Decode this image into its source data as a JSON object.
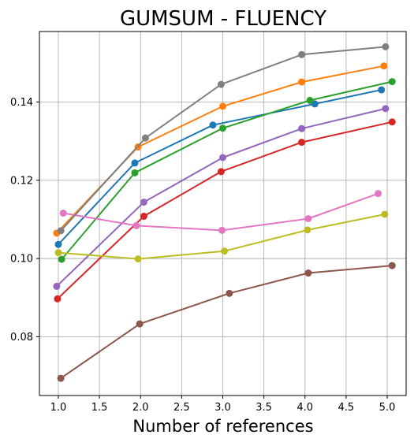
{
  "chart_data": {
    "type": "line",
    "title": "GUMSUM - FLUENCY",
    "xlabel": "Number of references",
    "ylabel": "",
    "xlim": [
      0.77,
      5.23
    ],
    "ylim": [
      0.065,
      0.158
    ],
    "xticks": [
      1.0,
      1.5,
      2.0,
      2.5,
      3.0,
      3.5,
      4.0,
      4.5,
      5.0
    ],
    "xtick_labels": [
      "1.0",
      "1.5",
      "2.0",
      "2.5",
      "3.0",
      "3.5",
      "4.0",
      "4.5",
      "5.0"
    ],
    "yticks": [
      0.08,
      0.1,
      0.12,
      0.14
    ],
    "ytick_labels": [
      "0.08",
      "0.10",
      "0.12",
      "0.14"
    ],
    "grid": true,
    "legend": false,
    "series": [
      {
        "color": "#1f77b4",
        "x": [
          1.0,
          1.93,
          2.88,
          4.12,
          4.93
        ],
        "y": [
          0.1036,
          0.1244,
          0.1341,
          0.1395,
          0.1431
        ]
      },
      {
        "color": "#ff7f0e",
        "x": [
          0.98,
          1.97,
          3.0,
          3.96,
          4.96
        ],
        "y": [
          0.1065,
          0.1285,
          0.1389,
          0.1451,
          0.1492
        ]
      },
      {
        "color": "#2ca02c",
        "x": [
          1.04,
          1.93,
          3.0,
          4.06,
          5.06
        ],
        "y": [
          0.0998,
          0.1219,
          0.1333,
          0.1404,
          0.1452
        ]
      },
      {
        "color": "#d62728",
        "x": [
          0.99,
          2.04,
          2.98,
          3.96,
          5.06
        ],
        "y": [
          0.0897,
          0.1108,
          0.1222,
          0.1297,
          0.1349
        ]
      },
      {
        "color": "#9467bd",
        "x": [
          0.98,
          2.04,
          3.0,
          3.96,
          4.98
        ],
        "y": [
          0.0929,
          0.1144,
          0.1258,
          0.1332,
          0.1383
        ]
      },
      {
        "color": "#8c564b",
        "x": [
          1.03,
          1.99,
          3.08,
          4.04,
          5.06
        ],
        "y": [
          0.0694,
          0.0833,
          0.0911,
          0.0963,
          0.0982
        ]
      },
      {
        "color": "#e377c2",
        "x": [
          1.06,
          1.95,
          2.99,
          4.04,
          4.89
        ],
        "y": [
          0.1116,
          0.1084,
          0.1072,
          0.1102,
          0.1166
        ]
      },
      {
        "color": "#7f7f7f",
        "x": [
          1.03,
          2.06,
          2.98,
          3.96,
          4.98
        ],
        "y": [
          0.1071,
          0.1308,
          0.1445,
          0.1521,
          0.1541
        ]
      },
      {
        "color": "#bcbd22",
        "x": [
          1.0,
          1.97,
          3.02,
          4.03,
          4.97
        ],
        "y": [
          0.1015,
          0.0999,
          0.1019,
          0.1073,
          0.1113
        ]
      }
    ]
  }
}
